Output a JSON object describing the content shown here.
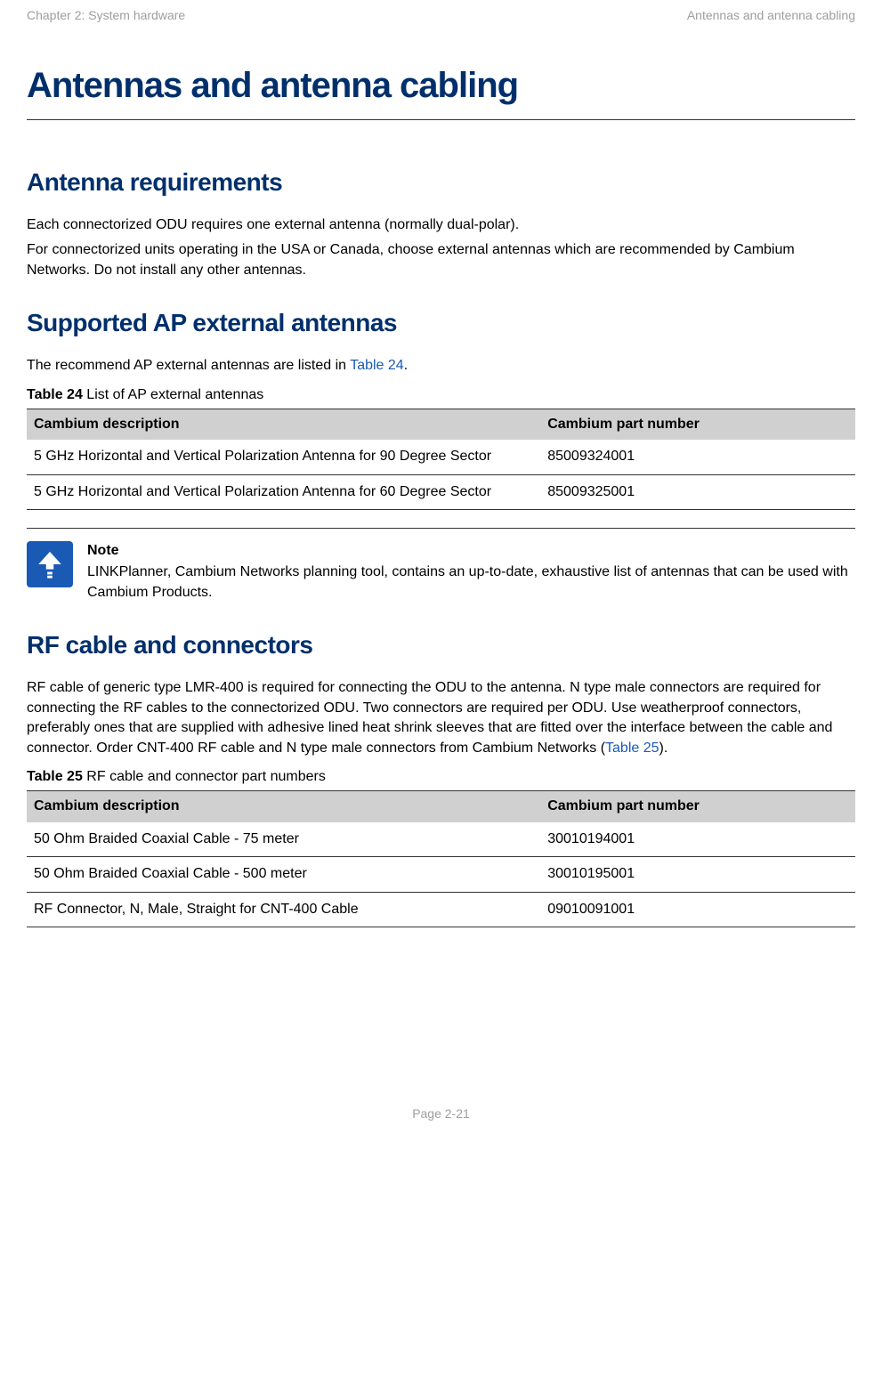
{
  "header": {
    "left": "Chapter 2:  System hardware",
    "right": "Antennas and antenna cabling"
  },
  "title": "Antennas and antenna cabling",
  "sections": {
    "antenna_req": {
      "heading": "Antenna requirements",
      "p1": "Each connectorized ODU requires one external antenna (normally dual-polar).",
      "p2": "For connectorized units operating in the USA or Canada, choose external antennas which are recommended by Cambium Networks. Do not install any other antennas."
    },
    "supported_ap": {
      "heading": "Supported AP external antennas",
      "p_pre": "The recommend AP external antennas are listed in ",
      "p_link": "Table 24",
      "p_post": ".",
      "table": {
        "caption_bold": "Table 24",
        "caption_rest": "  List of AP external antennas",
        "columns": [
          "Cambium description",
          "Cambium part number"
        ],
        "column_widths": [
          "62%",
          "38%"
        ],
        "header_bg": "#d0d0d0",
        "border_color": "#333333",
        "rows": [
          [
            "5 GHz Horizontal and Vertical Polarization Antenna for 90 Degree Sector",
            "85009324001"
          ],
          [
            "5 GHz Horizontal and Vertical Polarization Antenna for 60 Degree Sector",
            "85009325001"
          ]
        ]
      }
    },
    "note": {
      "label": "Note",
      "text": "LINKPlanner, Cambium Networks planning tool, contains an up-to-date, exhaustive list of antennas that can be used with Cambium Products.",
      "icon_bg": "#1a5ab5",
      "icon_fg": "#ffffff"
    },
    "rf": {
      "heading": "RF cable and connectors",
      "p_pre": "RF cable of generic type LMR-400 is required for connecting the ODU to the antenna. N type male connectors are required for connecting the RF cables to the connectorized ODU. Two connectors are required per ODU. Use weatherproof connectors, preferably ones that are supplied with adhesive lined heat shrink sleeves that are fitted over the interface between the cable and connector. Order CNT-400 RF cable and N type male connectors from Cambium Networks (",
      "p_link": "Table 25",
      "p_post": ").",
      "table": {
        "caption_bold": "Table 25",
        "caption_rest": "  RF cable and connector part numbers",
        "columns": [
          "Cambium description",
          "Cambium part number"
        ],
        "column_widths": [
          "62%",
          "38%"
        ],
        "header_bg": "#d0d0d0",
        "border_color": "#333333",
        "rows": [
          [
            "50 Ohm Braided Coaxial Cable - 75 meter",
            "30010194001"
          ],
          [
            "50 Ohm Braided Coaxial Cable - 500 meter",
            "30010195001"
          ],
          [
            "RF Connector, N, Male, Straight for CNT-400 Cable",
            "09010091001"
          ]
        ]
      }
    }
  },
  "footer": "Page 2-21"
}
